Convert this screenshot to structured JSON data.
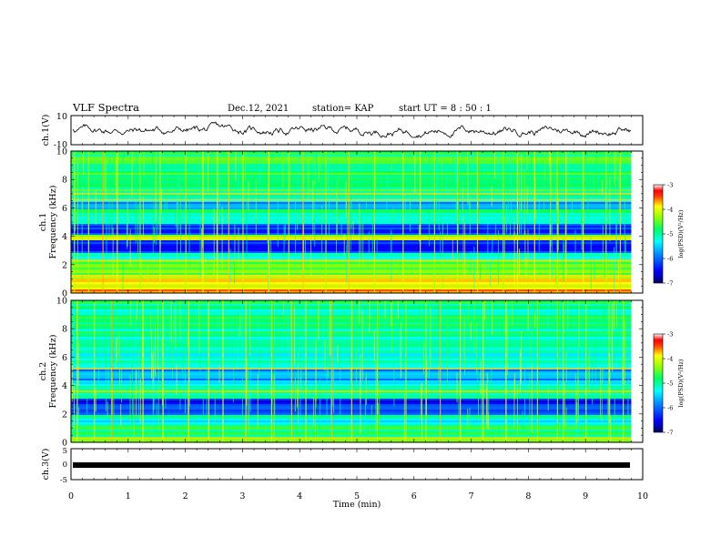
{
  "header": {
    "title": "VLF Spectra",
    "date": "Dec.12, 2021",
    "station": "station= KAP",
    "start_ut": "start  UT =   8  : 50 : 1"
  },
  "colors": {
    "spectrum_scale": [
      "#000080",
      "#0000ff",
      "#0080ff",
      "#00ffff",
      "#00ff80",
      "#80ff00",
      "#ffff00",
      "#ff8000",
      "#ff0000",
      "#ffffff"
    ],
    "trace": "#000000"
  },
  "chart_data": [
    {
      "type": "line",
      "name": "ch1-waveform",
      "ylabel": "ch.1(V)",
      "ylim": [
        -10,
        10
      ],
      "yticks": [
        "10",
        "-10"
      ],
      "xlim": [
        0,
        10
      ],
      "note_values": "noisy trace fluctuating roughly between -5 and 6 V over 0-9.8 min"
    },
    {
      "type": "heatmap",
      "name": "ch1-spectrogram",
      "ylabel": "ch.1\nFrequency (kHz)",
      "ylim": [
        0,
        10
      ],
      "yticks": [
        "0",
        "2",
        "4",
        "6",
        "8",
        "10"
      ],
      "xlim": [
        0,
        10
      ],
      "data_end_min": 9.8,
      "colorbar": {
        "label": "log(PSD)(V²/Hz)",
        "range": [
          -7,
          -3
        ],
        "ticks": [
          "-3",
          "-4",
          "-5",
          "-6",
          "-7"
        ]
      },
      "bands": [
        {
          "f": [
            0.0,
            0.4
          ],
          "level": -3.6
        },
        {
          "f": [
            0.4,
            1.3
          ],
          "level": -4.0
        },
        {
          "f": [
            1.3,
            2.4
          ],
          "level": -4.6
        },
        {
          "f": [
            2.4,
            2.9
          ],
          "level": -5.0
        },
        {
          "f": [
            2.9,
            3.8
          ],
          "level": -6.3
        },
        {
          "f": [
            3.8,
            4.2
          ],
          "level": -4.3
        },
        {
          "f": [
            4.2,
            5.0
          ],
          "level": -6.2
        },
        {
          "f": [
            5.0,
            5.9
          ],
          "level": -5.0
        },
        {
          "f": [
            5.9,
            6.5
          ],
          "level": -5.9
        },
        {
          "f": [
            6.5,
            7.2
          ],
          "level": -5.2
        },
        {
          "f": [
            7.2,
            10.0
          ],
          "level": -4.8
        }
      ],
      "lines_khz": [
        0.5,
        2.3,
        3.9,
        6.55,
        7.0
      ],
      "bursts_min": [
        0.05,
        0.3,
        0.55,
        0.8,
        1.2,
        1.55,
        2.0,
        2.3,
        2.55,
        2.75,
        3.0,
        3.45,
        3.8,
        4.05,
        4.45,
        4.85,
        5.3,
        5.8,
        6.1,
        6.35,
        6.75,
        7.1,
        7.55,
        7.8,
        8.1,
        8.5,
        8.65,
        8.95,
        9.35,
        9.6
      ]
    },
    {
      "type": "heatmap",
      "name": "ch2-spectrogram",
      "ylabel": "ch.2\nFrequency (kHz)",
      "ylim": [
        0,
        10
      ],
      "yticks": [
        "0",
        "2",
        "4",
        "6",
        "8",
        "10"
      ],
      "xlim": [
        0,
        10
      ],
      "data_end_min": 9.8,
      "colorbar": {
        "label": "log(PSD)(V²/Hz)",
        "range": [
          -7,
          -3
        ],
        "ticks": [
          "-3",
          "-4",
          "-5",
          "-6",
          "-7"
        ]
      },
      "bands": [
        {
          "f": [
            0.0,
            0.3
          ],
          "level": -4.2
        },
        {
          "f": [
            0.3,
            1.3
          ],
          "level": -4.8
        },
        {
          "f": [
            1.3,
            2.0
          ],
          "level": -5.3
        },
        {
          "f": [
            2.0,
            2.6
          ],
          "level": -6.2
        },
        {
          "f": [
            2.6,
            3.2
          ],
          "level": -6.4
        },
        {
          "f": [
            3.2,
            4.2
          ],
          "level": -5.0
        },
        {
          "f": [
            4.2,
            5.2
          ],
          "level": -5.7
        },
        {
          "f": [
            5.2,
            7.5
          ],
          "level": -5.2
        },
        {
          "f": [
            7.5,
            10.0
          ],
          "level": -5.0
        }
      ],
      "lines_khz": [
        0.3,
        3.6,
        5.2
      ],
      "bursts_min": [
        0.1,
        0.4,
        0.7,
        1.25,
        1.6,
        2.05,
        2.4,
        2.65,
        3.05,
        3.5,
        3.85,
        4.1,
        4.55,
        4.9,
        5.35,
        5.85,
        6.2,
        6.45,
        6.8,
        7.2,
        7.6,
        8.15,
        8.5,
        8.6,
        9.0,
        9.4,
        9.65
      ]
    },
    {
      "type": "line",
      "name": "ch3-trace",
      "ylabel": "ch.3(V)",
      "ylim": [
        -5,
        5
      ],
      "yticks": [
        "5",
        "0",
        "-5"
      ],
      "xlim": [
        0,
        10
      ],
      "level_v": 0,
      "xlabel": "Time  (min)",
      "xticks": [
        "0",
        "1",
        "2",
        "3",
        "4",
        "5",
        "6",
        "7",
        "8",
        "9",
        "10"
      ]
    }
  ]
}
